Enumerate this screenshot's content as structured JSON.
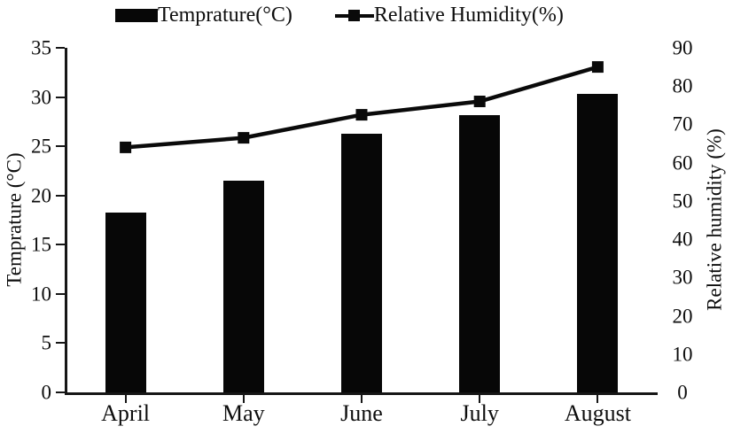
{
  "chart_data": {
    "type": "combo-bar-line",
    "categories": [
      "April",
      "May",
      "June",
      "July",
      "August"
    ],
    "series": [
      {
        "name": "Temprature(°C)",
        "type": "bar",
        "axis": "left",
        "color": "#070707",
        "values": [
          18.3,
          21.5,
          26.3,
          28.2,
          30.3
        ]
      },
      {
        "name": "Relative Humidity(%)",
        "type": "line",
        "axis": "right",
        "color": "#0a0a0a",
        "marker": "square",
        "values": [
          64,
          66.5,
          72.5,
          76,
          85
        ]
      }
    ],
    "left_axis": {
      "label": "Temprature (°C)",
      "ylim": [
        0,
        35
      ],
      "ticks": [
        0,
        5,
        10,
        15,
        20,
        25,
        30,
        35
      ]
    },
    "right_axis": {
      "label": "Relative humidity (%)",
      "ylim": [
        0,
        90
      ],
      "ticks": [
        0,
        10,
        20,
        30,
        40,
        50,
        60,
        70,
        80,
        90
      ]
    },
    "legend": {
      "position": "top"
    },
    "grid": false,
    "background": "#ffffff"
  }
}
